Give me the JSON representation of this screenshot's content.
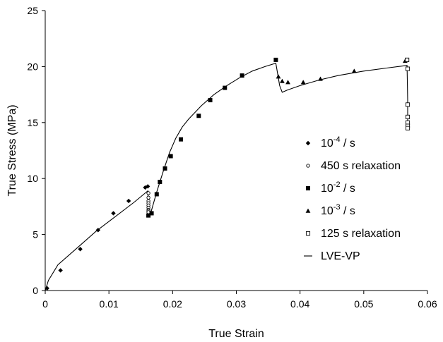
{
  "chart_data": {
    "type": "scatter",
    "xlabel": "True Strain",
    "ylabel": "True Stress (MPa)",
    "xlim": [
      0,
      0.06
    ],
    "ylim": [
      0,
      25
    ],
    "xticks": [
      "0",
      "0.01",
      "0.02",
      "0.03",
      "0.04",
      "0.05",
      "0.06"
    ],
    "yticks": [
      "0",
      "5",
      "10",
      "15",
      "20",
      "25"
    ],
    "grid": false,
    "legend_position": "right",
    "series": [
      {
        "name": "10-4 / s",
        "label_base": "10",
        "label_exp": "-4",
        "label_suffix": " / s",
        "marker": "diamond-filled",
        "x": [
          0.0003,
          0.0024,
          0.0055,
          0.0083,
          0.0107,
          0.0131,
          0.0157,
          0.0161
        ],
        "y": [
          0.2,
          1.8,
          3.7,
          5.4,
          6.9,
          8.0,
          9.2,
          9.3
        ]
      },
      {
        "name": "450 s relaxation",
        "marker": "circle-open",
        "x": [
          0.0162,
          0.0162,
          0.0162,
          0.0162,
          0.0162,
          0.0162,
          0.0162,
          0.0162,
          0.0162
        ],
        "y": [
          8.7,
          8.3,
          8.0,
          7.8,
          7.6,
          7.4,
          7.2,
          7.1,
          7.0
        ]
      },
      {
        "name": "10-2 / s",
        "label_base": "10",
        "label_exp": "-2",
        "label_suffix": " / s",
        "marker": "square-filled",
        "x": [
          0.0162,
          0.0167,
          0.0175,
          0.018,
          0.0188,
          0.0197,
          0.0213,
          0.0241,
          0.0259,
          0.0282,
          0.0309,
          0.0362
        ],
        "y": [
          6.7,
          6.9,
          8.6,
          9.7,
          10.9,
          12.0,
          13.5,
          15.6,
          17.0,
          18.1,
          19.2,
          20.6
        ]
      },
      {
        "name": "10-3 / s",
        "label_base": "10",
        "label_exp": "-3",
        "label_suffix": " / s",
        "marker": "triangle-filled",
        "x": [
          0.0366,
          0.0372,
          0.0381,
          0.0405,
          0.0432,
          0.0485,
          0.0565
        ],
        "y": [
          19.1,
          18.7,
          18.6,
          18.6,
          18.9,
          19.6,
          20.5
        ]
      },
      {
        "name": "125 s relaxation",
        "marker": "square-open",
        "x": [
          0.0568,
          0.0569,
          0.0569,
          0.0569,
          0.0569,
          0.0569,
          0.0569
        ],
        "y": [
          20.6,
          19.8,
          16.6,
          15.5,
          15.0,
          14.7,
          14.5
        ]
      }
    ],
    "model": {
      "name": "LVE-VP",
      "marker": "line",
      "x": [
        0,
        0.0005,
        0.002,
        0.005,
        0.008,
        0.011,
        0.014,
        0.0161,
        0.0162,
        0.0164,
        0.0166,
        0.0175,
        0.0185,
        0.0195,
        0.0205,
        0.0215,
        0.0225,
        0.0245,
        0.0265,
        0.0285,
        0.0305,
        0.0325,
        0.0345,
        0.0362,
        0.0368,
        0.0372,
        0.038,
        0.04,
        0.043,
        0.046,
        0.05,
        0.054,
        0.0568,
        0.0569,
        0.0569
      ],
      "y": [
        0,
        0.9,
        2.3,
        3.8,
        5.3,
        6.6,
        7.9,
        8.9,
        7.4,
        6.7,
        7.0,
        8.8,
        10.6,
        12.3,
        13.6,
        14.6,
        15.3,
        16.5,
        17.5,
        18.3,
        19.0,
        19.6,
        20.0,
        20.3,
        18.3,
        17.7,
        17.9,
        18.3,
        18.8,
        19.2,
        19.6,
        19.9,
        20.1,
        17.0,
        14.5
      ]
    }
  }
}
